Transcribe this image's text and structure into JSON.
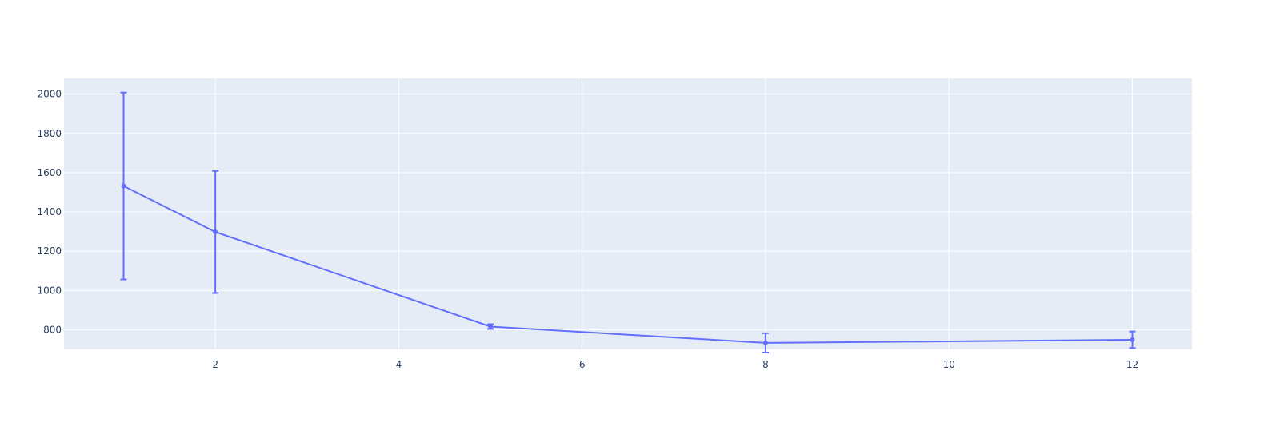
{
  "chart_data": {
    "type": "line",
    "x": [
      1,
      2,
      5,
      8,
      12
    ],
    "series": [
      {
        "values": [
          1532,
          1298,
          816,
          733,
          749
        ],
        "error": [
          476,
          311,
          12,
          49,
          42
        ],
        "color": "#636efa"
      }
    ],
    "xlim": [
      0.35,
      12.65
    ],
    "ylim": [
      700,
      2080
    ],
    "xticks": [
      2,
      4,
      6,
      8,
      10,
      12
    ],
    "yticks": [
      800,
      1000,
      1200,
      1400,
      1600,
      1800,
      2000
    ],
    "grid": true,
    "plot_bg": "#e5ecf6",
    "grid_color": "#ffffff"
  }
}
